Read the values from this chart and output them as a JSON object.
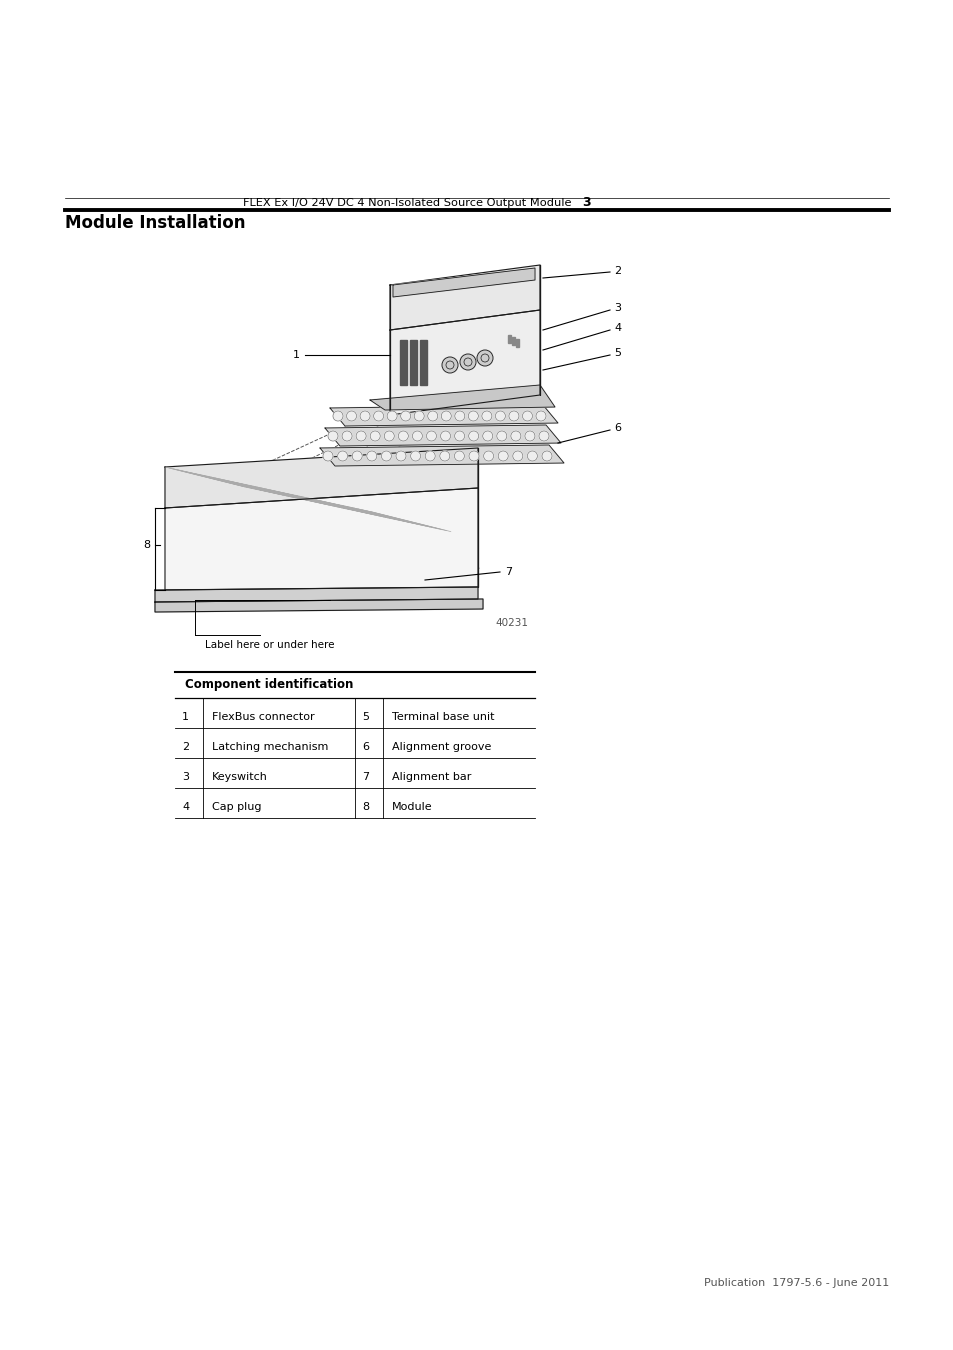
{
  "page_header_text": "FLEX Ex I/O 24V DC 4 Non-Isolated Source Output Module",
  "page_number": "3",
  "section_title": "Module Installation",
  "image_label": "40231",
  "label_note": "Label here or under here",
  "table_header": "Component identification",
  "table_rows": [
    [
      "1",
      "FlexBus connector",
      "5",
      "Terminal base unit"
    ],
    [
      "2",
      "Latching mechanism",
      "6",
      "Alignment groove"
    ],
    [
      "3",
      "Keyswitch",
      "7",
      "Alignment bar"
    ],
    [
      "4",
      "Cap plug",
      "8",
      "Module"
    ]
  ],
  "footer_text": "Publication  1797-5.6 - June 2011",
  "bg_color": "#ffffff",
  "text_color": "#000000"
}
